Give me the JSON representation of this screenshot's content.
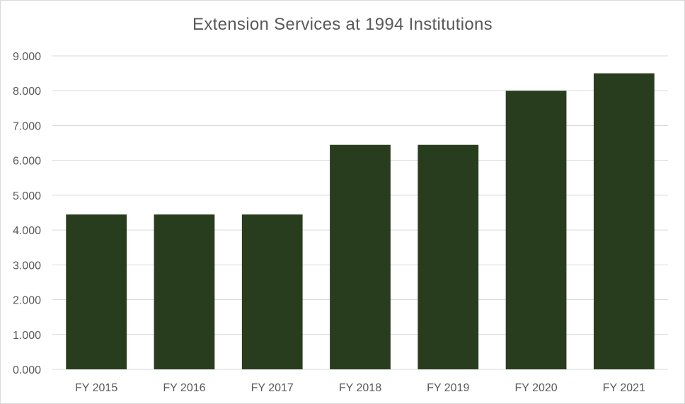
{
  "chart_data": {
    "type": "bar",
    "title": "Extension Services at 1994 Institutions",
    "categories": [
      "FY 2015",
      "FY 2016",
      "FY 2017",
      "FY 2018",
      "FY 2019",
      "FY 2020",
      "FY 2021"
    ],
    "values": [
      4.446,
      4.446,
      4.446,
      6.446,
      6.446,
      8.0,
      8.5
    ],
    "yticks": [
      "0.000",
      "1.000",
      "2.000",
      "3.000",
      "4.000",
      "5.000",
      "6.000",
      "7.000",
      "8.000",
      "9.000"
    ],
    "ylim": [
      0,
      9
    ],
    "grid": true,
    "legend": "none",
    "bar_color": "#283d1d",
    "grid_color": "#d9d9d9",
    "text_color": "#595959"
  }
}
